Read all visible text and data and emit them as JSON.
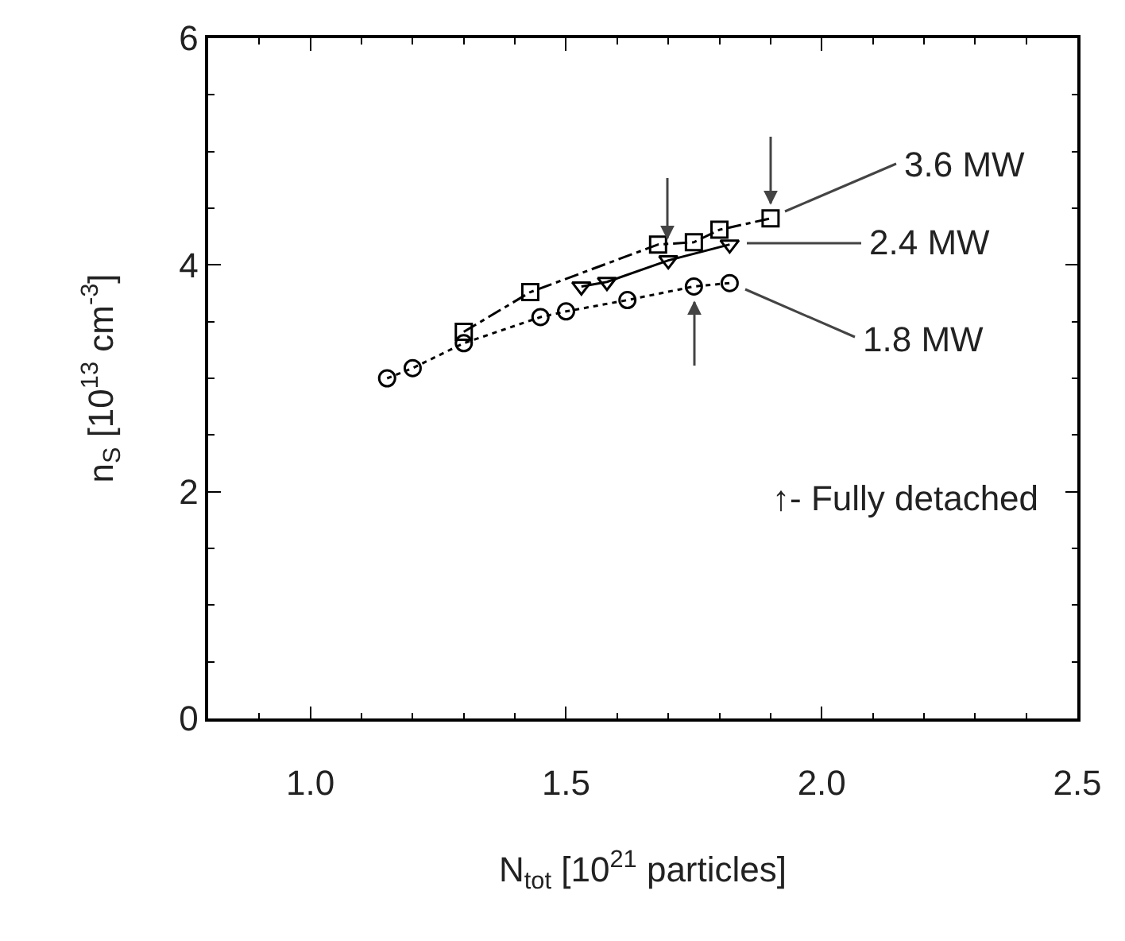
{
  "chart_data": {
    "type": "line",
    "xlabel": "N$_{tot}$ [10$^{21}$ particles]",
    "ylabel": "n$_{S}$ [10$^{13}$ cm$^{-3}$]",
    "xlim": [
      0.8,
      2.5
    ],
    "xticks": [
      {
        "value": 1,
        "label": "1.0"
      },
      1.5,
      {
        "value": 2,
        "label": "2.0"
      },
      2.5
    ],
    "ylim": [
      0,
      6
    ],
    "yticks": [
      0,
      2,
      4,
      6
    ],
    "grid": false,
    "legend": "right",
    "series": [
      {
        "name": "3.6 MW",
        "color": "#000000",
        "marker": "square",
        "line_style": "dashed",
        "x": [
          1.3,
          1.43,
          1.68,
          1.75,
          1.8,
          1.9
        ],
        "values": [
          3.41,
          3.76,
          4.18,
          4.2,
          4.31,
          4.41
        ]
      },
      {
        "name": "2.4 MW",
        "color": "#000000",
        "marker": "triangle",
        "line_style": "solid",
        "x": [
          1.53,
          1.58,
          1.7,
          1.82
        ],
        "values": [
          3.81,
          3.85,
          4.04,
          4.18
        ]
      },
      {
        "name": "1.8 MW",
        "color": "#000000",
        "marker": "circle",
        "line_style": "dotted",
        "x": [
          1.15,
          1.2,
          1.3,
          1.45,
          1.5,
          1.62,
          1.75,
          1.82
        ],
        "values": [
          3.0,
          3.09,
          3.31,
          3.54,
          3.59,
          3.69,
          3.81,
          3.84
        ]
      }
    ],
    "annotations": [
      "↑- Fully detached"
    ]
  }
}
